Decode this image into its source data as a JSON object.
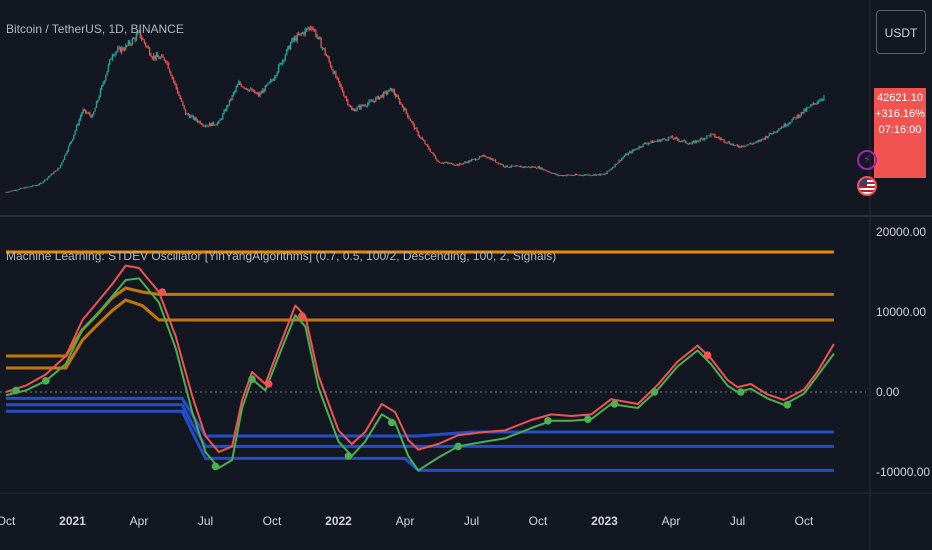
{
  "symbol_title": "Bitcoin / TetherUS, 1D, BINANCE",
  "indicator_title": "Machine Learning: STDEV Oscillator [YinYangAlgorithms] (0.7, 0.5, 100/2, Descending, 100, 2, Signals)",
  "currency": "USDT",
  "price_box": {
    "price": "42621.10",
    "change": "+316.16%",
    "countdown": "07:16:00"
  },
  "colors": {
    "background": "#131722",
    "up": "#26a69a",
    "down": "#ef5350",
    "osc_red": "#f05350",
    "osc_green": "#4caf50",
    "upper": "#ff9800",
    "lower": "#2962ff",
    "price_box": "#f05350"
  },
  "x_axis": [
    {
      "label": "Oct",
      "bold": false
    },
    {
      "label": "2021",
      "bold": true
    },
    {
      "label": "Apr",
      "bold": false
    },
    {
      "label": "Jul",
      "bold": false
    },
    {
      "label": "Oct",
      "bold": false
    },
    {
      "label": "2022",
      "bold": true
    },
    {
      "label": "Apr",
      "bold": false
    },
    {
      "label": "Jul",
      "bold": false
    },
    {
      "label": "Oct",
      "bold": false
    },
    {
      "label": "2023",
      "bold": true
    },
    {
      "label": "Apr",
      "bold": false
    },
    {
      "label": "Jul",
      "bold": false
    },
    {
      "label": "Oct",
      "bold": false
    }
  ],
  "chart_data": [
    {
      "type": "candlestick",
      "title": "Bitcoin / TetherUS, 1D, BINANCE",
      "x_ticks": [
        "Oct",
        "2021",
        "Apr",
        "Jul",
        "Oct",
        "2022",
        "Apr",
        "Jul",
        "Oct",
        "2023",
        "Apr",
        "Jul",
        "Oct"
      ],
      "close_path": [
        [
          0.0,
          11000
        ],
        [
          0.5,
          13500
        ],
        [
          0.8,
          19000
        ],
        [
          1.0,
          29000
        ],
        [
          1.15,
          38000
        ],
        [
          1.3,
          36000
        ],
        [
          1.6,
          57000
        ],
        [
          1.8,
          59000
        ],
        [
          2.0,
          63500
        ],
        [
          2.2,
          56000
        ],
        [
          2.4,
          55000
        ],
        [
          2.7,
          37000
        ],
        [
          3.0,
          33000
        ],
        [
          3.2,
          34000
        ],
        [
          3.5,
          47000
        ],
        [
          3.8,
          43000
        ],
        [
          4.0,
          48000
        ],
        [
          4.3,
          61000
        ],
        [
          4.6,
          66000
        ],
        [
          4.8,
          57000
        ],
        [
          5.0,
          47000
        ],
        [
          5.2,
          38000
        ],
        [
          5.5,
          41000
        ],
        [
          5.8,
          45000
        ],
        [
          6.0,
          38000
        ],
        [
          6.2,
          30000
        ],
        [
          6.5,
          21000
        ],
        [
          6.8,
          20000
        ],
        [
          7.2,
          23000
        ],
        [
          7.5,
          19500
        ],
        [
          8.0,
          19200
        ],
        [
          8.3,
          16500
        ],
        [
          9.0,
          16800
        ],
        [
          9.3,
          23000
        ],
        [
          9.6,
          27000
        ],
        [
          10.0,
          29000
        ],
        [
          10.3,
          27000
        ],
        [
          10.6,
          30000
        ],
        [
          11.0,
          26000
        ],
        [
          11.3,
          27500
        ],
        [
          11.8,
          34500
        ],
        [
          12.3,
          42621.1
        ]
      ],
      "last_price": "42621.10",
      "change": "+316.16%"
    },
    {
      "type": "line",
      "title": "Machine Learning: STDEV Oscillator [YinYangAlgorithms] (0.7, 0.5, 100/2, Descending, 100, 2, Signals)",
      "ylim": [
        -11000,
        20000
      ],
      "y_ticks": [
        20000,
        10000,
        0,
        -10000
      ],
      "y_tick_labels": [
        "20000.00",
        "10000.00",
        "0.00",
        "-10000.00"
      ],
      "zero_line": true,
      "series": [
        {
          "points": [
            [
              0.0,
              0
            ],
            [
              0.3,
              800
            ],
            [
              0.6,
              2200
            ],
            [
              0.9,
              4500
            ],
            [
              1.15,
              9000
            ],
            [
              1.35,
              11000
            ],
            [
              1.6,
              13500
            ],
            [
              1.8,
              15800
            ],
            [
              2.0,
              15500
            ],
            [
              2.3,
              12500
            ],
            [
              2.55,
              7000
            ],
            [
              2.8,
              -500
            ],
            [
              3.0,
              -5500
            ],
            [
              3.2,
              -7500
            ],
            [
              3.4,
              -6800
            ],
            [
              3.55,
              -1000
            ],
            [
              3.7,
              2500
            ],
            [
              3.9,
              1000
            ],
            [
              4.15,
              6500
            ],
            [
              4.35,
              10800
            ],
            [
              4.5,
              9500
            ],
            [
              4.7,
              2000
            ],
            [
              5.0,
              -4800
            ],
            [
              5.2,
              -6500
            ],
            [
              5.4,
              -5000
            ],
            [
              5.65,
              -1500
            ],
            [
              5.85,
              -2500
            ],
            [
              6.05,
              -6000
            ],
            [
              6.2,
              -7200
            ],
            [
              6.5,
              -6500
            ],
            [
              6.8,
              -5400
            ],
            [
              7.2,
              -5000
            ],
            [
              7.5,
              -4800
            ],
            [
              7.9,
              -3500
            ],
            [
              8.2,
              -2800
            ],
            [
              8.5,
              -3000
            ],
            [
              8.8,
              -2800
            ],
            [
              9.1,
              -900
            ],
            [
              9.5,
              -1500
            ],
            [
              9.8,
              900
            ],
            [
              10.1,
              3800
            ],
            [
              10.4,
              5800
            ],
            [
              10.6,
              4200
            ],
            [
              10.85,
              1500
            ],
            [
              11.0,
              600
            ],
            [
              11.2,
              1000
            ],
            [
              11.45,
              -300
            ],
            [
              11.7,
              -1000
            ],
            [
              12.0,
              300
            ],
            [
              12.2,
              2500
            ],
            [
              12.45,
              6000
            ]
          ]
        },
        {
          "points": [
            [
              0.0,
              -400
            ],
            [
              0.3,
              200
            ],
            [
              0.6,
              1400
            ],
            [
              0.9,
              3500
            ],
            [
              1.15,
              7800
            ],
            [
              1.35,
              9500
            ],
            [
              1.6,
              12000
            ],
            [
              1.8,
              14000
            ],
            [
              2.0,
              14200
            ],
            [
              2.3,
              11200
            ],
            [
              2.55,
              5500
            ],
            [
              2.8,
              -2500
            ],
            [
              3.0,
              -7500
            ],
            [
              3.2,
              -9500
            ],
            [
              3.4,
              -8500
            ],
            [
              3.55,
              -2000
            ],
            [
              3.7,
              1600
            ],
            [
              3.9,
              200
            ],
            [
              4.15,
              5500
            ],
            [
              4.35,
              9600
            ],
            [
              4.5,
              8200
            ],
            [
              4.7,
              500
            ],
            [
              5.0,
              -6200
            ],
            [
              5.2,
              -8000
            ],
            [
              5.4,
              -6200
            ],
            [
              5.65,
              -2800
            ],
            [
              5.85,
              -3800
            ],
            [
              6.05,
              -8000
            ],
            [
              6.2,
              -9800
            ],
            [
              6.5,
              -8200
            ],
            [
              6.8,
              -6800
            ],
            [
              7.2,
              -6200
            ],
            [
              7.5,
              -5800
            ],
            [
              7.9,
              -4500
            ],
            [
              8.2,
              -3600
            ],
            [
              8.5,
              -3600
            ],
            [
              8.8,
              -3400
            ],
            [
              9.1,
              -1500
            ],
            [
              9.5,
              -2000
            ],
            [
              9.8,
              300
            ],
            [
              10.1,
              3200
            ],
            [
              10.4,
              5200
            ],
            [
              10.6,
              3500
            ],
            [
              10.85,
              800
            ],
            [
              11.0,
              0
            ],
            [
              11.2,
              400
            ],
            [
              11.45,
              -800
            ],
            [
              11.7,
              -1600
            ],
            [
              12.0,
              -200
            ],
            [
              12.2,
              2000
            ],
            [
              12.45,
              4800
            ]
          ]
        },
        {
          "points": [
            [
              0.0,
              4500
            ],
            [
              0.5,
              4500
            ],
            [
              0.9,
              4500
            ],
            [
              1.15,
              7800
            ],
            [
              1.35,
              9500
            ],
            [
              1.6,
              11800
            ],
            [
              1.8,
              13000
            ],
            [
              2.05,
              12500
            ],
            [
              2.3,
              12200
            ],
            [
              3.0,
              12200
            ],
            [
              4.0,
              12200
            ],
            [
              5.0,
              12200
            ],
            [
              12.45,
              12200
            ]
          ]
        },
        {
          "points": [
            [
              0.0,
              3000
            ],
            [
              0.9,
              3000
            ],
            [
              1.15,
              6500
            ],
            [
              1.35,
              8200
            ],
            [
              1.6,
              10200
            ],
            [
              1.8,
              11500
            ],
            [
              2.05,
              10800
            ],
            [
              2.3,
              9000
            ],
            [
              3.0,
              9000
            ],
            [
              4.0,
              9000
            ],
            [
              12.45,
              9000
            ]
          ]
        },
        {
          "points": [
            [
              0.0,
              17500
            ],
            [
              12.45,
              17500
            ]
          ]
        },
        {
          "points": [
            [
              0.0,
              -800
            ],
            [
              2.65,
              -800
            ],
            [
              2.8,
              -2800
            ],
            [
              3.0,
              -5500
            ],
            [
              3.2,
              -5500
            ],
            [
              5.0,
              -5500
            ],
            [
              6.2,
              -5500
            ],
            [
              7.0,
              -5000
            ],
            [
              12.45,
              -5000
            ]
          ]
        },
        {
          "points": [
            [
              0.0,
              -1600
            ],
            [
              2.65,
              -1600
            ],
            [
              2.8,
              -4000
            ],
            [
              3.0,
              -6800
            ],
            [
              5.0,
              -6800
            ],
            [
              6.2,
              -6800
            ],
            [
              7.0,
              -6800
            ],
            [
              12.45,
              -6800
            ]
          ]
        },
        {
          "points": [
            [
              0.0,
              -2400
            ],
            [
              2.65,
              -2400
            ],
            [
              2.8,
              -5000
            ],
            [
              3.0,
              -8300
            ],
            [
              6.0,
              -8300
            ],
            [
              6.2,
              -9800
            ],
            [
              12.45,
              -9800
            ]
          ]
        }
      ],
      "signals": [
        {
          "color": "green",
          "x": 0.15,
          "y": 200
        },
        {
          "color": "green",
          "x": 0.6,
          "y": 1400
        },
        {
          "color": "red",
          "x": 2.35,
          "y": 12500
        },
        {
          "color": "green",
          "x": 3.15,
          "y": -9300
        },
        {
          "color": "green",
          "x": 3.7,
          "y": 1600
        },
        {
          "color": "red",
          "x": 3.95,
          "y": 1000
        },
        {
          "color": "red",
          "x": 4.45,
          "y": 9500
        },
        {
          "color": "green",
          "x": 5.15,
          "y": -8000
        },
        {
          "color": "green",
          "x": 5.8,
          "y": -3800
        },
        {
          "color": "green",
          "x": 6.8,
          "y": -6800
        },
        {
          "color": "green",
          "x": 8.15,
          "y": -3600
        },
        {
          "color": "green",
          "x": 8.75,
          "y": -3400
        },
        {
          "color": "green",
          "x": 9.15,
          "y": -1500
        },
        {
          "color": "green",
          "x": 9.75,
          "y": 0
        },
        {
          "color": "red",
          "x": 10.55,
          "y": 4600
        },
        {
          "color": "green",
          "x": 11.05,
          "y": 0
        },
        {
          "color": "green",
          "x": 11.75,
          "y": -1600
        }
      ]
    }
  ]
}
